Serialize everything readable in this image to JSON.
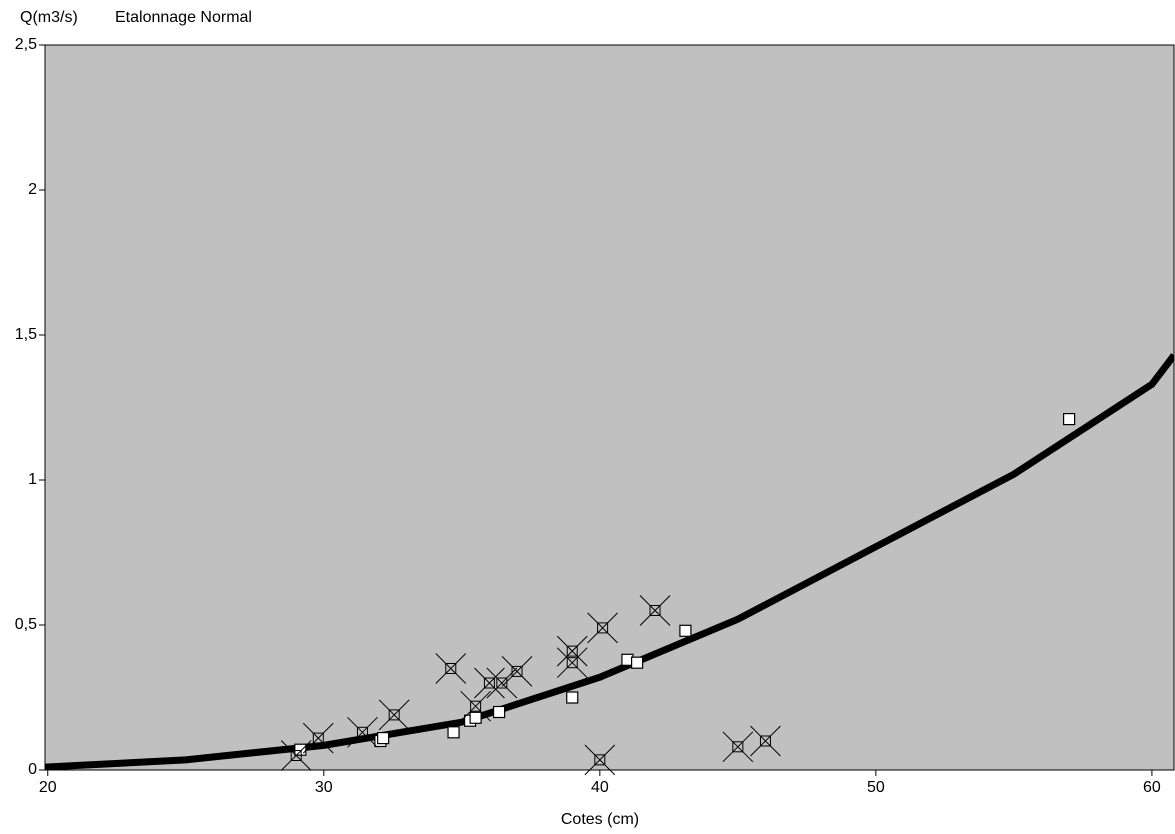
{
  "chart_data": {
    "type": "scatter",
    "y_label": "Q(m3/s)",
    "subtitle": "Etalonnage Normal",
    "x_label": "Cotes (cm)",
    "xlim": [
      19.9,
      60.8
    ],
    "xticks": [
      20,
      30,
      40,
      50,
      60
    ],
    "ylim": [
      0,
      2.5
    ],
    "yticks": [
      0,
      {
        "value": 0.5,
        "label": "0,5"
      },
      1,
      {
        "value": 1.5,
        "label": "1,5"
      },
      2,
      {
        "value": 2.5,
        "label": "2,5"
      }
    ],
    "background": "#c0c0c0",
    "series": [
      {
        "style": "line",
        "color": "#000000",
        "x": [
          19.9,
          25,
          30,
          35,
          40,
          45,
          50,
          55,
          60,
          60.8
        ],
        "values": [
          0.01,
          0.035,
          0.085,
          0.165,
          0.32,
          0.52,
          0.77,
          1.02,
          1.33,
          1.43
        ]
      },
      {
        "style": "square",
        "color": "#ffffff",
        "x": [
          29.15,
          32.05,
          32.15,
          34.7,
          35.3,
          35.5,
          36.35,
          39.0,
          41.0,
          41.35,
          43.1,
          57.0
        ],
        "values": [
          0.07,
          0.1,
          0.11,
          0.13,
          0.17,
          0.18,
          0.2,
          0.25,
          0.38,
          0.37,
          0.48,
          1.21
        ]
      },
      {
        "style": "crossed",
        "color": "#000000",
        "x": [
          29.0,
          29.8,
          31.4,
          32.55,
          34.6,
          35.5,
          36.0,
          36.45,
          37.0,
          39.0,
          39.0,
          40.1,
          40.0,
          42.0,
          45.0,
          46.0
        ],
        "values": [
          0.05,
          0.11,
          0.13,
          0.19,
          0.35,
          0.22,
          0.3,
          0.3,
          0.34,
          0.41,
          0.37,
          0.49,
          0.035,
          0.55,
          0.08,
          0.1
        ]
      }
    ]
  }
}
